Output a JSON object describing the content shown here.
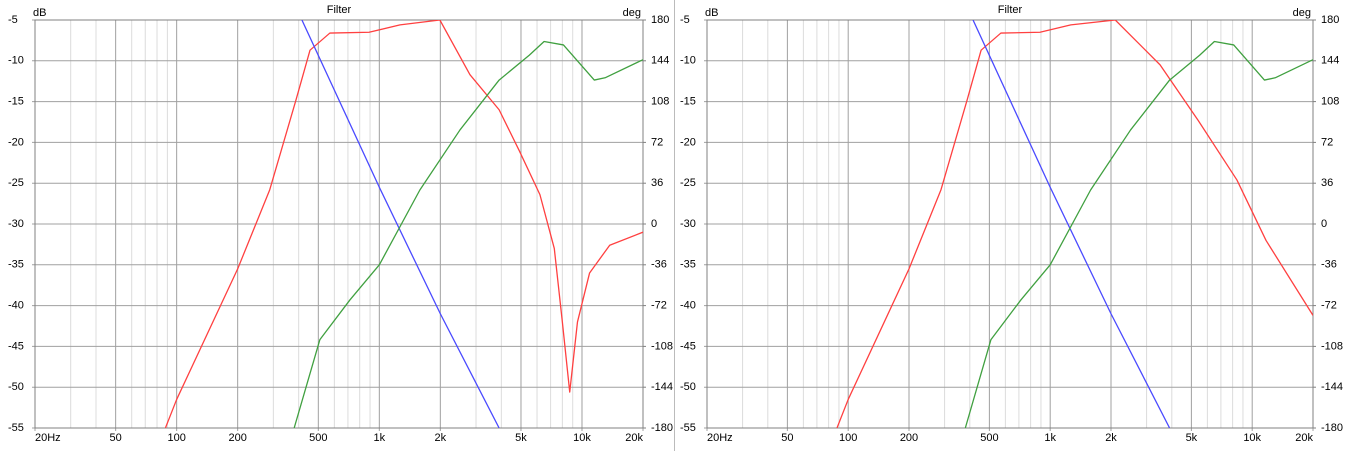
{
  "chart_data": [
    {
      "type": "line",
      "title": "Filter",
      "ylabel": "dB",
      "y2label": "deg",
      "log_x": true,
      "grid": true,
      "xlim": [
        20,
        20000
      ],
      "ylim": [
        -55,
        -5
      ],
      "y2lim": [
        -180,
        180
      ],
      "xticks": [
        {
          "value": 20,
          "label": "20Hz"
        },
        50,
        100,
        200,
        500,
        {
          "value": 1000,
          "label": "1k"
        },
        {
          "value": 2000,
          "label": "2k"
        },
        {
          "value": 5000,
          "label": "5k"
        },
        {
          "value": 10000,
          "label": "10k"
        },
        {
          "value": 20000,
          "label": "20k"
        }
      ],
      "minor_xticks": [
        30,
        40,
        60,
        70,
        80,
        90,
        300,
        400,
        600,
        700,
        800,
        900,
        3000,
        4000,
        6000,
        7000,
        8000,
        9000
      ],
      "yticks": [
        -5,
        -10,
        -15,
        -20,
        -25,
        -30,
        -35,
        -40,
        -45,
        -50,
        -55
      ],
      "y2ticks": [
        180,
        144,
        108,
        72,
        36,
        0,
        -36,
        -72,
        -108,
        -144,
        -180
      ],
      "series": [
        {
          "color": "#ff4040",
          "x": [
            88,
            100,
            200,
            288,
            388,
            455,
            570,
            890,
            1265,
            1990,
            2800,
            3900,
            4900,
            6200,
            7300,
            8000,
            8700,
            9500,
            10900,
            13700,
            20000
          ],
          "values": [
            -55,
            -51.5,
            -35.5,
            -25.8,
            -14.8,
            -8.7,
            -6.6,
            -6.5,
            -5.6,
            -5,
            -11.7,
            -16,
            -21,
            -26.4,
            -33,
            -42,
            -50.6,
            -42,
            -36,
            -32.6,
            -31
          ]
        },
        {
          "color": "#4a4aff",
          "x": [
            415,
            1000,
            2000,
            3900
          ],
          "values": [
            -5,
            -25.5,
            -41,
            -55
          ]
        },
        {
          "color": "#40a040",
          "axis": "y2",
          "x": [
            380,
            509,
            716,
            1000,
            1585,
            2500,
            3900,
            5500,
            6500,
            8100,
            11500,
            13000,
            20000
          ],
          "values": [
            -180,
            -102,
            -67,
            -36,
            30,
            83,
            127,
            149,
            161,
            158,
            127,
            129,
            145
          ]
        }
      ]
    },
    {
      "type": "line",
      "title": "Filter",
      "ylabel": "dB",
      "y2label": "deg",
      "log_x": true,
      "grid": true,
      "xlim": [
        20,
        20000
      ],
      "ylim": [
        -55,
        -5
      ],
      "y2lim": [
        -180,
        180
      ],
      "xticks": [
        {
          "value": 20,
          "label": "20Hz"
        },
        50,
        100,
        200,
        500,
        {
          "value": 1000,
          "label": "1k"
        },
        {
          "value": 2000,
          "label": "2k"
        },
        {
          "value": 5000,
          "label": "5k"
        },
        {
          "value": 10000,
          "label": "10k"
        },
        {
          "value": 20000,
          "label": "20k"
        }
      ],
      "minor_xticks": [
        30,
        40,
        60,
        70,
        80,
        90,
        300,
        400,
        600,
        700,
        800,
        900,
        3000,
        4000,
        6000,
        7000,
        8000,
        9000
      ],
      "yticks": [
        -5,
        -10,
        -15,
        -20,
        -25,
        -30,
        -35,
        -40,
        -45,
        -50,
        -55
      ],
      "y2ticks": [
        180,
        144,
        108,
        72,
        36,
        0,
        -36,
        -72,
        -108,
        -144,
        -180
      ],
      "series": [
        {
          "color": "#ff4040",
          "x": [
            88,
            100,
            200,
            288,
            388,
            455,
            570,
            890,
            1265,
            2100,
            3500,
            5400,
            8400,
            11700,
            20000
          ],
          "values": [
            -55,
            -51.5,
            -35.5,
            -25.8,
            -14.8,
            -8.7,
            -6.6,
            -6.5,
            -5.6,
            -5,
            -10.5,
            -17.3,
            -24.6,
            -32,
            -41.2
          ]
        },
        {
          "color": "#4a4aff",
          "x": [
            415,
            1000,
            2000,
            3900
          ],
          "values": [
            -5,
            -25.5,
            -41,
            -55
          ]
        },
        {
          "color": "#40a040",
          "axis": "y2",
          "x": [
            380,
            509,
            716,
            1000,
            1585,
            2500,
            3900,
            5500,
            6500,
            8100,
            11500,
            13000,
            20000
          ],
          "values": [
            -180,
            -102,
            -67,
            -36,
            30,
            83,
            127,
            149,
            161,
            158,
            127,
            129,
            145
          ]
        }
      ]
    }
  ]
}
